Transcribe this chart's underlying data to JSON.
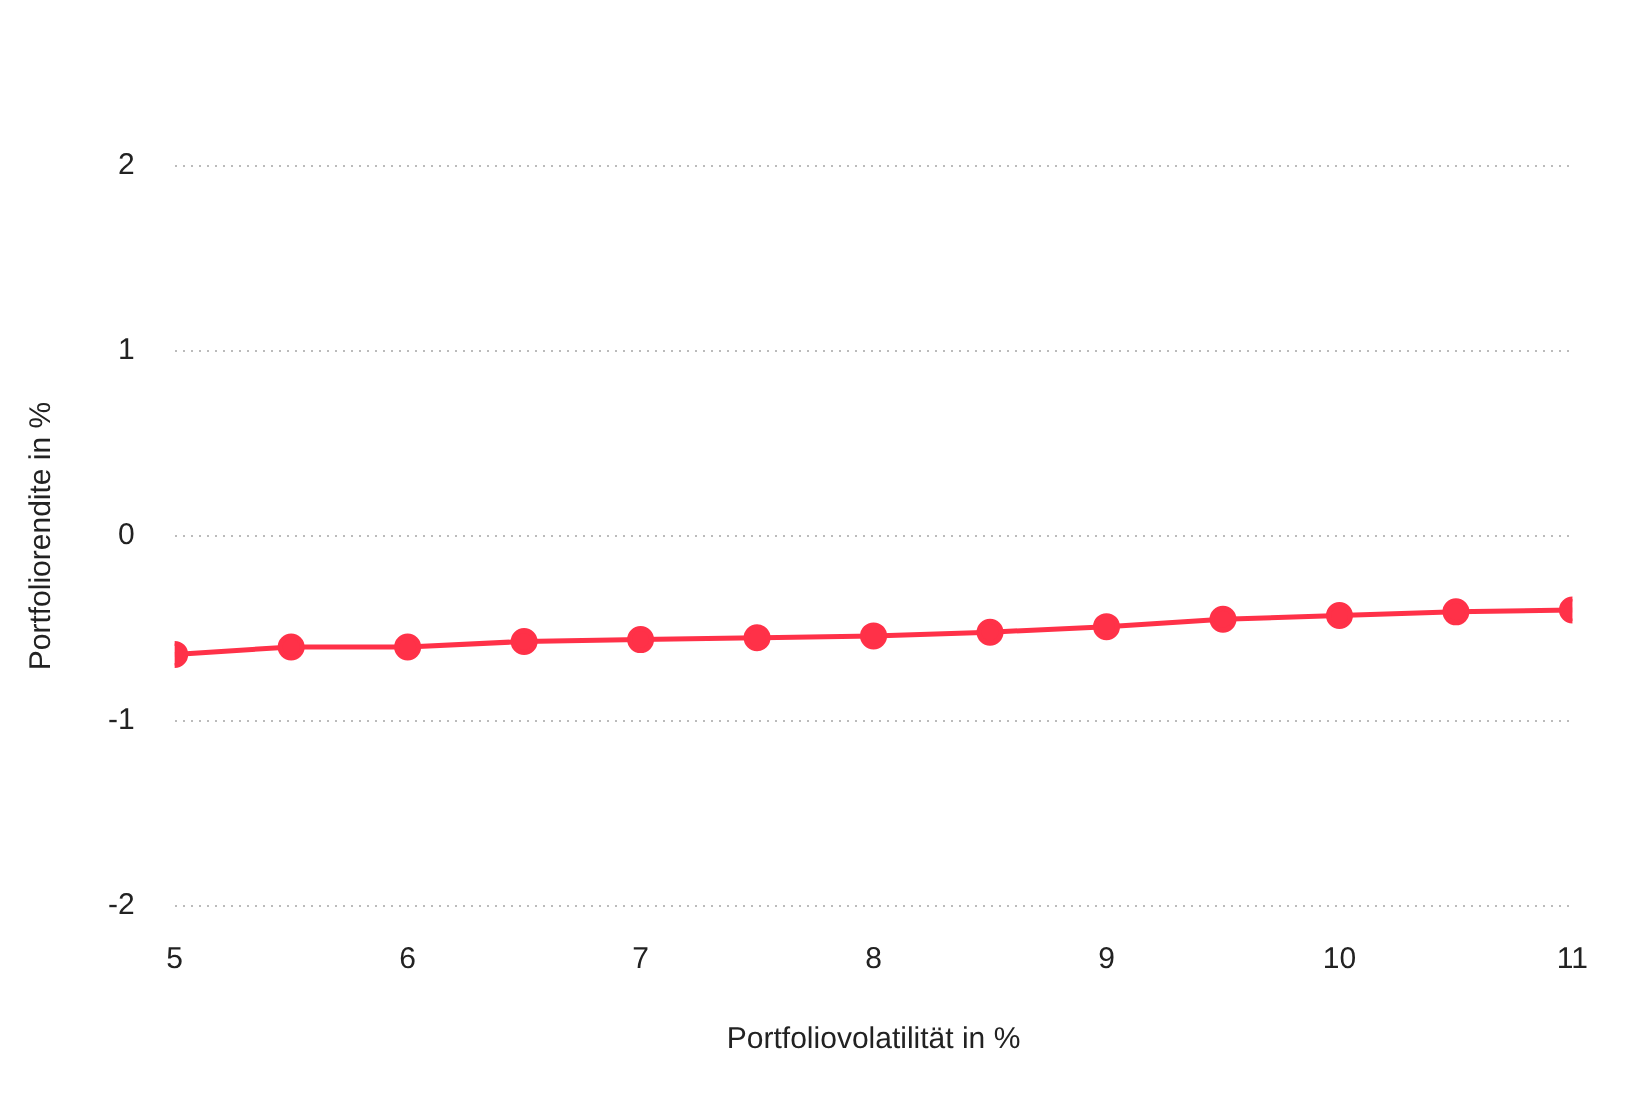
{
  "chart_data": {
    "type": "line",
    "xlabel": "Portfoliovolatilität in %",
    "ylabel": "Portfoliorendite in %",
    "x": [
      5,
      5.5,
      6,
      6.5,
      7,
      7.5,
      8,
      8.5,
      9,
      9.5,
      10,
      10.5,
      11
    ],
    "series": [
      {
        "color": "#ff3148",
        "values": [
          -0.64,
          -0.6,
          -0.6,
          -0.57,
          -0.56,
          -0.55,
          -0.54,
          -0.52,
          -0.49,
          -0.45,
          -0.43,
          -0.41,
          -0.4
        ]
      }
    ],
    "xlim": [
      5,
      11
    ],
    "xticks": [
      5,
      6,
      7,
      8,
      9,
      10,
      11
    ],
    "ylim": [
      -2,
      2
    ],
    "yticks": [
      -2,
      -1,
      0,
      1,
      2
    ],
    "grid": "y",
    "legend": false,
    "marker": "circle",
    "line_style": "solid"
  }
}
